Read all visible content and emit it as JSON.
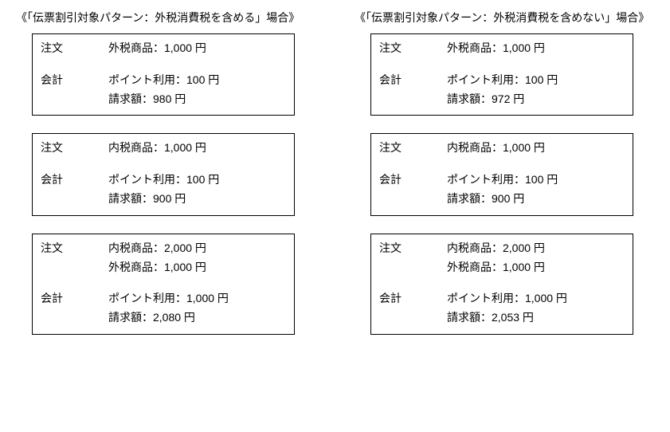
{
  "left": {
    "title": "《「伝票割引対象パターン：外税消費税を含める」場合》",
    "boxes": [
      {
        "order_label": "注文",
        "order_lines": [
          "外税商品：1,000 円"
        ],
        "account_label": "会計",
        "account_lines": [
          "ポイント利用：100 円",
          "請求額：980 円"
        ]
      },
      {
        "order_label": "注文",
        "order_lines": [
          "内税商品：1,000 円"
        ],
        "account_label": "会計",
        "account_lines": [
          "ポイント利用：100 円",
          "請求額：900 円"
        ]
      },
      {
        "order_label": "注文",
        "order_lines": [
          "内税商品：2,000 円",
          "外税商品：1,000 円"
        ],
        "account_label": "会計",
        "account_lines": [
          "ポイント利用：1,000 円",
          "請求額：2,080 円"
        ]
      }
    ]
  },
  "right": {
    "title": "《「伝票割引対象パターン：外税消費税を含めない」場合》",
    "boxes": [
      {
        "order_label": "注文",
        "order_lines": [
          "外税商品：1,000 円"
        ],
        "account_label": "会計",
        "account_lines": [
          "ポイント利用：100 円",
          "請求額：972 円"
        ]
      },
      {
        "order_label": "注文",
        "order_lines": [
          "内税商品：1,000 円"
        ],
        "account_label": "会計",
        "account_lines": [
          "ポイント利用：100 円",
          "請求額：900 円"
        ]
      },
      {
        "order_label": "注文",
        "order_lines": [
          "内税商品：2,000 円",
          "外税商品：1,000 円"
        ],
        "account_label": "会計",
        "account_lines": [
          "ポイント利用：1,000 円",
          "請求額：2,053 円"
        ]
      }
    ]
  }
}
